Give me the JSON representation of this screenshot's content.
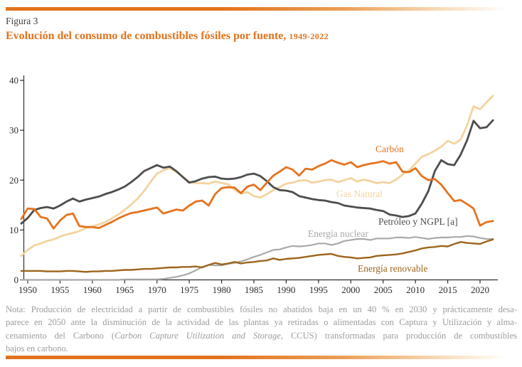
{
  "page": {
    "figure_label": "Figura 3",
    "title": "Evolución del consumo de combustibles fósiles por fuente,",
    "title_period": "1949-2022",
    "accent_color": "#e2731d"
  },
  "note": {
    "lines": [
      "Nota: Producción de electricidad a partir de combustibles fósiles no abatidos baja en un 40 % en 2030 y prácticamente desa-",
      "parece en 2050 ante la disminución de la actividad de las plantas ya retiradas o alimentadas con Captura y Utilización y alma-",
      "bajos en carbono."
    ],
    "line3_pre": "cenamiento del Carbono (",
    "line3_italic": "Carbon Capture Utilization and Storage",
    "line3_post": ", CCUS) transformadas para producción de combustibles"
  },
  "chart_data": {
    "type": "line",
    "title": "Evolución del consumo de combustibles fósiles por fuente, 1949-2022",
    "xlabel": "",
    "ylabel": "",
    "xlim": [
      1949,
      2023
    ],
    "ylim": [
      0,
      40
    ],
    "grid": false,
    "legend_position": "inline-labels",
    "x_ticks": [
      1950,
      1955,
      1960,
      1965,
      1970,
      1975,
      1980,
      1985,
      1990,
      1995,
      2000,
      2005,
      2010,
      2015,
      2020
    ],
    "y_ticks": [
      0,
      10,
      20,
      30,
      40
    ],
    "years": [
      1949,
      1950,
      1951,
      1952,
      1953,
      1954,
      1955,
      1956,
      1957,
      1958,
      1959,
      1960,
      1961,
      1962,
      1963,
      1964,
      1965,
      1966,
      1967,
      1968,
      1969,
      1970,
      1971,
      1972,
      1973,
      1974,
      1975,
      1976,
      1977,
      1978,
      1979,
      1980,
      1981,
      1982,
      1983,
      1984,
      1985,
      1986,
      1987,
      1988,
      1989,
      1990,
      1991,
      1992,
      1993,
      1994,
      1995,
      1996,
      1997,
      1998,
      1999,
      2000,
      2001,
      2002,
      2003,
      2004,
      2005,
      2006,
      2007,
      2008,
      2009,
      2010,
      2011,
      2012,
      2013,
      2014,
      2015,
      2016,
      2017,
      2018,
      2019,
      2020,
      2021,
      2022
    ],
    "draw_order": [
      1,
      2,
      3,
      4,
      0
    ],
    "series": [
      {
        "key": "carbon",
        "name": "Carbón",
        "color": "#e5731e",
        "values": [
          12.2,
          14.3,
          14.2,
          12.6,
          12.3,
          10.3,
          11.9,
          13.0,
          13.3,
          10.8,
          10.6,
          10.6,
          10.4,
          11.0,
          11.6,
          12.3,
          12.9,
          13.4,
          13.6,
          13.9,
          14.2,
          14.5,
          13.3,
          13.7,
          14.1,
          13.9,
          14.9,
          15.7,
          15.9,
          14.9,
          17.2,
          18.4,
          18.6,
          18.5,
          17.4,
          18.7,
          19.1,
          18.0,
          19.5,
          20.9,
          21.7,
          22.6,
          22.1,
          20.9,
          22.3,
          22.1,
          22.8,
          23.3,
          24.0,
          23.5,
          23.1,
          23.6,
          22.6,
          23.0,
          23.3,
          23.5,
          23.8,
          23.3,
          23.6,
          21.7,
          21.6,
          22.4,
          20.8,
          20.0,
          20.2,
          19.1,
          17.4,
          15.8,
          16.0,
          15.2,
          14.3,
          10.9,
          11.6,
          11.8
        ]
      },
      {
        "key": "gas_natural",
        "name": "Gas Natural",
        "color": "#f3d3a0",
        "values": [
          4.8,
          6.0,
          6.9,
          7.3,
          7.8,
          8.1,
          8.7,
          9.1,
          9.4,
          9.8,
          10.4,
          10.7,
          11.1,
          11.6,
          12.3,
          13.1,
          14.0,
          15.1,
          16.3,
          17.8,
          19.6,
          21.3,
          22.0,
          22.4,
          21.6,
          20.7,
          19.7,
          19.4,
          19.4,
          19.3,
          19.7,
          19.4,
          19.2,
          18.1,
          17.3,
          17.6,
          16.8,
          16.5,
          17.2,
          18.0,
          18.6,
          19.3,
          19.5,
          19.9,
          20.0,
          19.5,
          19.7,
          20.0,
          20.1,
          19.6,
          20.0,
          20.4,
          19.7,
          20.1,
          19.8,
          19.4,
          19.6,
          19.4,
          20.1,
          21.1,
          21.9,
          23.3,
          24.7,
          25.2,
          25.9,
          26.7,
          27.9,
          27.3,
          28.1,
          31.0,
          34.8,
          34.2,
          35.6,
          36.9
        ]
      },
      {
        "key": "petroleo_ngpl",
        "name": "Petróleo y NGPL [a]",
        "color": "#4d4d4d",
        "values": [
          11.3,
          12.4,
          14.0,
          14.4,
          14.6,
          14.3,
          14.9,
          15.7,
          16.3,
          15.7,
          16.1,
          16.4,
          16.7,
          17.2,
          17.6,
          18.1,
          18.7,
          19.6,
          20.6,
          21.8,
          22.4,
          23.0,
          22.5,
          22.7,
          21.8,
          20.6,
          19.5,
          19.8,
          20.3,
          20.6,
          20.7,
          20.3,
          20.2,
          20.3,
          20.6,
          21.1,
          21.3,
          20.8,
          19.8,
          18.6,
          18.0,
          17.9,
          17.6,
          16.8,
          16.5,
          16.2,
          16.0,
          15.9,
          15.6,
          15.4,
          14.9,
          14.7,
          14.5,
          14.4,
          14.3,
          14.0,
          13.8,
          13.1,
          12.9,
          12.6,
          12.8,
          13.3,
          15.3,
          17.8,
          21.8,
          24.0,
          23.2,
          23.0,
          25.1,
          28.0,
          31.9,
          30.4,
          30.6,
          32.0
        ]
      },
      {
        "key": "energia_nuclear",
        "name": "Energía nuclear",
        "color": "#a9a9a9",
        "values": [
          0,
          0,
          0,
          0,
          0,
          0,
          0,
          0,
          0,
          0,
          0,
          0,
          0,
          0,
          0,
          0,
          0.1,
          0.1,
          0.1,
          0.1,
          0.1,
          0.1,
          0.2,
          0.4,
          0.6,
          0.9,
          1.3,
          1.9,
          2.6,
          3.0,
          2.9,
          2.9,
          3.2,
          3.4,
          3.7,
          4.1,
          4.6,
          5.0,
          5.5,
          6.0,
          6.1,
          6.5,
          6.8,
          6.7,
          6.8,
          7.0,
          7.3,
          7.3,
          7.0,
          7.3,
          7.8,
          8.0,
          8.2,
          8.2,
          8.0,
          8.3,
          8.3,
          8.3,
          8.5,
          8.5,
          8.4,
          8.6,
          8.4,
          8.2,
          8.4,
          8.5,
          8.5,
          8.6,
          8.6,
          8.8,
          8.7,
          8.4,
          8.2,
          8.2
        ]
      },
      {
        "key": "energia_renovable",
        "name": "Energía renovable",
        "color": "#9d641c",
        "values": [
          1.8,
          1.8,
          1.8,
          1.8,
          1.7,
          1.7,
          1.7,
          1.8,
          1.8,
          1.7,
          1.6,
          1.7,
          1.7,
          1.8,
          1.8,
          1.9,
          2.0,
          2.0,
          2.1,
          2.2,
          2.2,
          2.3,
          2.4,
          2.5,
          2.5,
          2.6,
          2.6,
          2.7,
          2.5,
          3.0,
          3.4,
          3.1,
          3.3,
          3.6,
          3.3,
          3.5,
          3.6,
          3.8,
          3.9,
          4.3,
          4.0,
          4.2,
          4.3,
          4.4,
          4.6,
          4.8,
          5.0,
          5.1,
          5.2,
          4.8,
          4.6,
          4.5,
          4.3,
          4.4,
          4.5,
          4.8,
          4.9,
          5.0,
          5.1,
          5.3,
          5.6,
          5.9,
          6.3,
          6.5,
          6.6,
          6.8,
          6.7,
          7.2,
          7.6,
          7.4,
          7.3,
          7.2,
          7.7,
          8.1
        ]
      }
    ]
  }
}
